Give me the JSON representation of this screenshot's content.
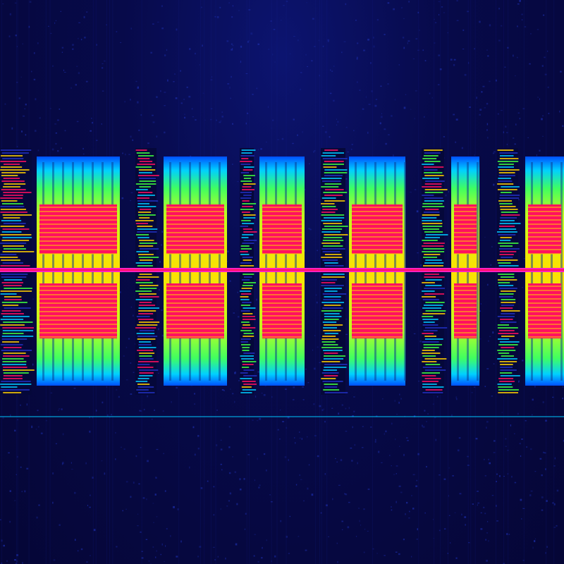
{
  "image": {
    "kind": "spectrogram waterfall",
    "colors": {
      "background": "#050636",
      "noise": "#1a2aa0",
      "low": "#00c8ff",
      "mid": "#40ff40",
      "high": "#ffd000",
      "peak": "#ff1060",
      "center_line": "#ff20c0"
    }
  }
}
